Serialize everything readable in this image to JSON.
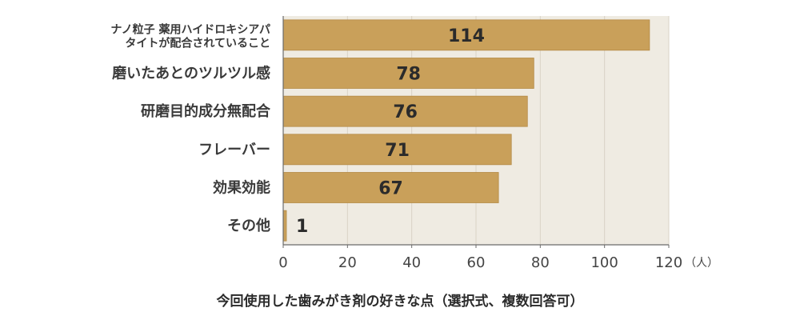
{
  "colors": {
    "plot_background": "#efebe2",
    "bar": "#c9a05a",
    "bar_edge": "#b48a45",
    "label_text": "#3a3a3a",
    "value_text": "#2b2b2b",
    "axis": "#6b6b6b"
  },
  "chart_data": {
    "type": "bar",
    "orientation": "horizontal",
    "categories": [
      [
        "ナノ粒子 薬用ハイドロキシアパ",
        "タイトが配合されていること"
      ],
      [
        "磨いたあとのツルツル感"
      ],
      [
        "研磨目的成分無配合"
      ],
      [
        "フレーバー"
      ],
      [
        "効果効能"
      ],
      [
        "その他"
      ]
    ],
    "values": [
      114,
      78,
      76,
      71,
      67,
      1
    ],
    "value_labels": [
      "114",
      "78",
      "76",
      "71",
      "67",
      "1"
    ],
    "xlim": [
      0,
      120
    ],
    "xticks": [
      0,
      20,
      40,
      60,
      80,
      100,
      120
    ],
    "xunit": "（人）",
    "grid": true,
    "legend": "none"
  },
  "caption": "今回使用した歯みがき剤の好きな点（選択式、複数回答可）"
}
